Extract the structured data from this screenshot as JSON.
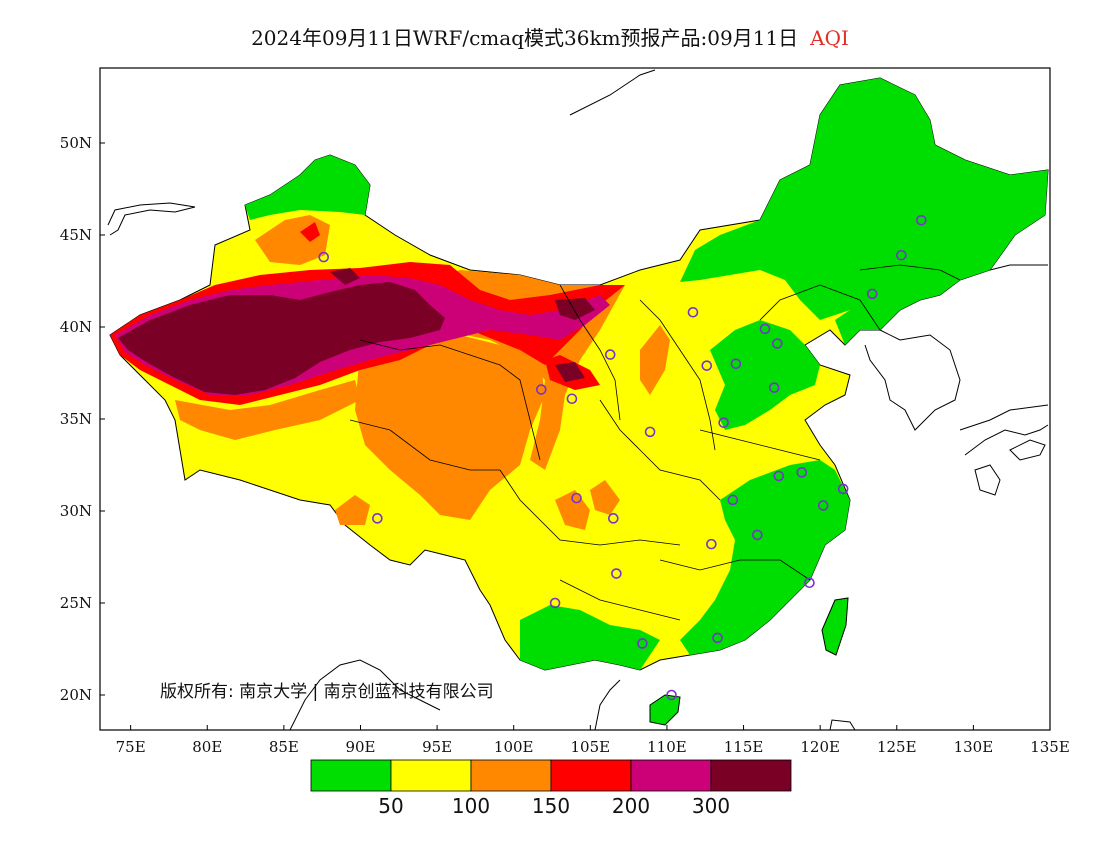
{
  "map": {
    "title": "2024年09月11日WRF/cmaq模式36km预报产品:09月11日",
    "variable": "AQI",
    "copyright": "版权所有: 南京大学 | 南京创蓝科技有限公司",
    "lon_labels": [
      "75E",
      "80E",
      "85E",
      "90E",
      "95E",
      "100E",
      "105E",
      "110E",
      "115E",
      "120E",
      "125E",
      "130E",
      "135E"
    ],
    "lat_labels": [
      "20N",
      "25N",
      "30N",
      "35N",
      "40N",
      "45N",
      "50N"
    ],
    "colorbar": {
      "colors": [
        "#00dd00",
        "#ffff00",
        "#ff8800",
        "#ff0000",
        "#cc0077",
        "#7a0026"
      ],
      "labels": [
        "50",
        "100",
        "150",
        "200",
        "300"
      ]
    },
    "colors": {
      "land": "#ffffff",
      "border": "#000000",
      "station": "#7733cc"
    },
    "stations": [
      {
        "lon": 87.6,
        "lat": 43.8
      },
      {
        "lon": 91.1,
        "lat": 29.6
      },
      {
        "lon": 101.8,
        "lat": 36.6
      },
      {
        "lon": 103.8,
        "lat": 36.1
      },
      {
        "lon": 106.3,
        "lat": 38.5
      },
      {
        "lon": 104.1,
        "lat": 30.7
      },
      {
        "lon": 106.5,
        "lat": 29.6
      },
      {
        "lon": 102.7,
        "lat": 25.0
      },
      {
        "lon": 106.7,
        "lat": 26.6
      },
      {
        "lon": 108.4,
        "lat": 22.8
      },
      {
        "lon": 110.3,
        "lat": 20.0
      },
      {
        "lon": 113.3,
        "lat": 23.1
      },
      {
        "lon": 112.9,
        "lat": 28.2
      },
      {
        "lon": 114.3,
        "lat": 30.6
      },
      {
        "lon": 115.9,
        "lat": 28.7
      },
      {
        "lon": 119.3,
        "lat": 26.1
      },
      {
        "lon": 120.2,
        "lat": 30.3
      },
      {
        "lon": 118.8,
        "lat": 32.1
      },
      {
        "lon": 117.3,
        "lat": 31.9
      },
      {
        "lon": 121.5,
        "lat": 31.2
      },
      {
        "lon": 113.7,
        "lat": 34.8
      },
      {
        "lon": 117.0,
        "lat": 36.7
      },
      {
        "lon": 114.5,
        "lat": 38.0
      },
      {
        "lon": 112.6,
        "lat": 37.9
      },
      {
        "lon": 111.7,
        "lat": 40.8
      },
      {
        "lon": 116.4,
        "lat": 39.9
      },
      {
        "lon": 117.2,
        "lat": 39.1
      },
      {
        "lon": 108.9,
        "lat": 34.3
      },
      {
        "lon": 123.4,
        "lat": 41.8
      },
      {
        "lon": 125.3,
        "lat": 43.9
      },
      {
        "lon": 126.6,
        "lat": 45.8
      }
    ]
  }
}
